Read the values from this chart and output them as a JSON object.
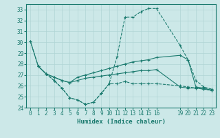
{
  "xlabel": "Humidex (Indice chaleur)",
  "bg_color": "#cce8e8",
  "line_color": "#1a7a6e",
  "grid_color": "#b0d4d4",
  "xlim": [
    -0.5,
    23.5
  ],
  "ylim": [
    24,
    33.5
  ],
  "yticks": [
    24,
    25,
    26,
    27,
    28,
    29,
    30,
    31,
    32,
    33
  ],
  "xticks": [
    0,
    1,
    2,
    3,
    4,
    5,
    6,
    7,
    8,
    9,
    10,
    11,
    12,
    13,
    14,
    15,
    16,
    19,
    20,
    21,
    22,
    23
  ],
  "lines": [
    {
      "x": [
        0,
        1,
        2,
        3,
        4,
        5,
        6,
        7,
        8,
        9,
        10,
        11,
        12,
        13,
        14,
        15,
        16,
        19,
        20,
        21,
        22,
        23
      ],
      "y": [
        30.1,
        27.8,
        27.1,
        26.5,
        25.8,
        24.9,
        24.7,
        24.3,
        24.5,
        25.3,
        26.2,
        28.7,
        32.3,
        32.3,
        32.8,
        33.1,
        33.1,
        29.7,
        28.4,
        26.5,
        25.9,
        25.7
      ],
      "style": "--",
      "marker": "+"
    },
    {
      "x": [
        0,
        1,
        2,
        3,
        4,
        5,
        6,
        7,
        8,
        9,
        10,
        11,
        12,
        13,
        14,
        15,
        16,
        19,
        20,
        21,
        22,
        23
      ],
      "y": [
        30.1,
        27.8,
        27.1,
        26.8,
        26.5,
        26.3,
        26.8,
        27.0,
        27.2,
        27.4,
        27.6,
        27.8,
        28.0,
        28.2,
        28.3,
        28.4,
        28.6,
        28.8,
        28.4,
        25.9,
        25.8,
        25.6
      ],
      "style": "-",
      "marker": "+"
    },
    {
      "x": [
        1,
        2,
        3,
        4,
        5,
        6,
        7,
        8,
        9,
        10,
        11,
        12,
        13,
        14,
        15,
        16,
        19,
        20,
        21,
        22,
        23
      ],
      "y": [
        27.8,
        27.1,
        26.8,
        26.5,
        26.3,
        26.5,
        26.7,
        26.8,
        26.9,
        27.0,
        27.1,
        27.2,
        27.3,
        27.4,
        27.4,
        27.5,
        25.9,
        25.8,
        25.8,
        25.7,
        25.6
      ],
      "style": "-",
      "marker": "+"
    },
    {
      "x": [
        2,
        3,
        4,
        5,
        6,
        7,
        8,
        9,
        10,
        11,
        12,
        13,
        14,
        15,
        16,
        19,
        20,
        21,
        22,
        23
      ],
      "y": [
        27.1,
        26.5,
        25.8,
        24.9,
        24.7,
        24.3,
        24.5,
        25.3,
        26.2,
        26.2,
        26.4,
        26.2,
        26.2,
        26.2,
        26.2,
        26.0,
        25.9,
        25.8,
        25.7,
        25.6
      ],
      "style": "--",
      "marker": "+"
    }
  ]
}
